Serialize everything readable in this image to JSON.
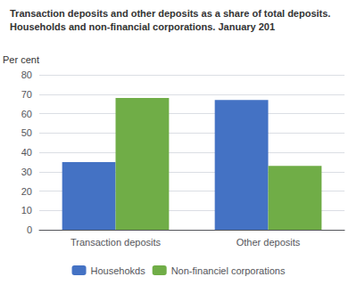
{
  "chart_data": {
    "type": "bar",
    "title": "Transaction deposits and other deposits as a share of total deposits.",
    "subtitle": "Households and non-financial corporations. January 201",
    "ylabel": "Per cent",
    "categories": [
      "Transaction deposits",
      "Other deposits"
    ],
    "series": [
      {
        "name": "Househokds",
        "color": "#4472C4",
        "values": [
          35,
          67
        ]
      },
      {
        "name": "Non-financiel corporations",
        "color": "#70AD47",
        "values": [
          68,
          33
        ]
      }
    ],
    "ylim": [
      0,
      80
    ],
    "yticks": [
      0,
      10,
      20,
      30,
      40,
      50,
      60,
      70,
      80
    ],
    "grid": true,
    "legend": "bottom"
  }
}
